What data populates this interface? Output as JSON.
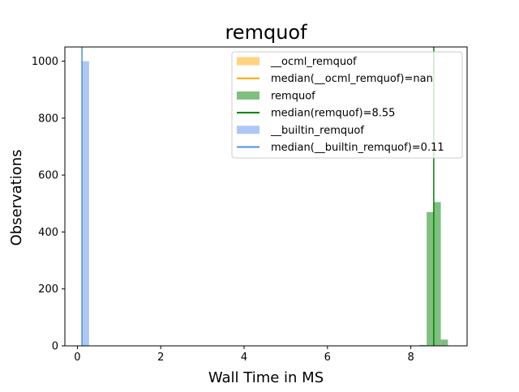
{
  "chart_data": {
    "type": "bar",
    "title": "remquof",
    "xlabel": "Wall Time in MS",
    "ylabel": "Observations",
    "xlim": [
      -0.3,
      9.35
    ],
    "ylim": [
      0,
      1050
    ],
    "xticks": [
      0,
      2,
      4,
      6,
      8
    ],
    "yticks": [
      0,
      200,
      400,
      600,
      800,
      1000
    ],
    "grid": false,
    "legend_position": "top-right",
    "series": [
      {
        "name": "__ocml_remquof",
        "kind": "histogram",
        "color": "#ffd37f",
        "bins": []
      },
      {
        "name": "median(__ocml_remquof)=nan",
        "kind": "vline",
        "color": "#ffa500",
        "x": null
      },
      {
        "name": "remquof",
        "kind": "histogram",
        "color": "#7fbf7f",
        "bins": [
          {
            "x0": 8.21,
            "x1": 8.38,
            "count": 3
          },
          {
            "x0": 8.38,
            "x1": 8.55,
            "count": 470
          },
          {
            "x0": 8.55,
            "x1": 8.72,
            "count": 505
          },
          {
            "x0": 8.72,
            "x1": 8.89,
            "count": 22
          }
        ]
      },
      {
        "name": "median(remquof)=8.55",
        "kind": "vline",
        "color": "#008000",
        "x": 8.55
      },
      {
        "name": "__builtin_remquof",
        "kind": "histogram",
        "color": "#aec7f4",
        "bins": [
          {
            "x0": 0.11,
            "x1": 0.28,
            "count": 1000
          }
        ]
      },
      {
        "name": "median(__builtin_remquof)=0.11",
        "kind": "vline",
        "color": "#4a90e2",
        "x": 0.11
      }
    ]
  }
}
